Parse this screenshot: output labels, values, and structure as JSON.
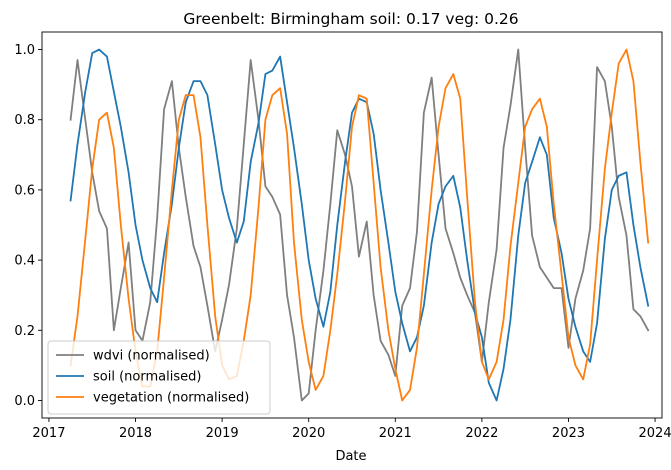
{
  "chart_data": {
    "type": "line",
    "title": "Greenbelt: Birmingham soil: 0.17     veg: 0.26",
    "xlabel": "Date",
    "ylabel": "",
    "xlim": [
      2016.92,
      2024.08
    ],
    "ylim": [
      -0.05,
      1.05
    ],
    "xticks": [
      2017,
      2018,
      2019,
      2020,
      2021,
      2022,
      2023,
      2024
    ],
    "xtick_labels": [
      "2017",
      "2018",
      "2019",
      "2020",
      "2021",
      "2022",
      "2023",
      "2024"
    ],
    "yticks": [
      0.0,
      0.2,
      0.4,
      0.6,
      0.8,
      1.0
    ],
    "ytick_labels": [
      "0.0",
      "0.2",
      "0.4",
      "0.6",
      "0.8",
      "1.0"
    ],
    "grid": false,
    "legend_position": "lower-left",
    "series": [
      {
        "name": "wdvi (normalised)",
        "color": "#7f7f7f",
        "x": [
          2017.25,
          2017.33,
          2017.42,
          2017.5,
          2017.58,
          2017.67,
          2017.75,
          2017.83,
          2017.92,
          2018.0,
          2018.08,
          2018.17,
          2018.25,
          2018.33,
          2018.42,
          2018.5,
          2018.58,
          2018.67,
          2018.75,
          2018.83,
          2018.92,
          2019.0,
          2019.08,
          2019.17,
          2019.25,
          2019.33,
          2019.42,
          2019.5,
          2019.58,
          2019.67,
          2019.75,
          2019.83,
          2019.92,
          2020.0,
          2020.08,
          2020.17,
          2020.25,
          2020.33,
          2020.42,
          2020.5,
          2020.58,
          2020.67,
          2020.75,
          2020.83,
          2020.92,
          2021.0,
          2021.08,
          2021.17,
          2021.25,
          2021.33,
          2021.42,
          2021.5,
          2021.58,
          2021.67,
          2021.75,
          2021.83,
          2021.92,
          2022.0,
          2022.08,
          2022.17,
          2022.25,
          2022.33,
          2022.42,
          2022.5,
          2022.58,
          2022.67,
          2022.75,
          2022.83,
          2022.92,
          2023.0,
          2023.08,
          2023.17,
          2023.25,
          2023.33,
          2023.42,
          2023.5,
          2023.58,
          2023.67,
          2023.75,
          2023.83,
          2023.92
        ],
        "values": [
          0.8,
          0.97,
          0.8,
          0.65,
          0.54,
          0.49,
          0.2,
          0.32,
          0.45,
          0.2,
          0.17,
          0.28,
          0.52,
          0.83,
          0.91,
          0.72,
          0.58,
          0.44,
          0.38,
          0.27,
          0.14,
          0.23,
          0.33,
          0.49,
          0.73,
          0.97,
          0.8,
          0.61,
          0.58,
          0.53,
          0.3,
          0.18,
          0.0,
          0.02,
          0.2,
          0.37,
          0.56,
          0.77,
          0.7,
          0.61,
          0.41,
          0.51,
          0.3,
          0.17,
          0.13,
          0.07,
          0.27,
          0.32,
          0.48,
          0.82,
          0.92,
          0.7,
          0.49,
          0.42,
          0.35,
          0.3,
          0.25,
          0.11,
          0.28,
          0.43,
          0.72,
          0.84,
          1.0,
          0.72,
          0.47,
          0.38,
          0.35,
          0.32,
          0.32,
          0.15,
          0.29,
          0.37,
          0.49,
          0.95,
          0.91,
          0.78,
          0.58,
          0.47,
          0.26,
          0.24,
          0.2
        ]
      },
      {
        "name": "soil (normalised)",
        "color": "#1f77b4",
        "x": [
          2017.25,
          2017.33,
          2017.42,
          2017.5,
          2017.58,
          2017.67,
          2017.75,
          2017.83,
          2017.92,
          2018.0,
          2018.08,
          2018.17,
          2018.25,
          2018.33,
          2018.42,
          2018.5,
          2018.58,
          2018.67,
          2018.75,
          2018.83,
          2018.92,
          2019.0,
          2019.08,
          2019.17,
          2019.25,
          2019.33,
          2019.42,
          2019.5,
          2019.58,
          2019.67,
          2019.75,
          2019.83,
          2019.92,
          2020.0,
          2020.08,
          2020.17,
          2020.25,
          2020.33,
          2020.42,
          2020.5,
          2020.58,
          2020.67,
          2020.75,
          2020.83,
          2020.92,
          2021.0,
          2021.08,
          2021.17,
          2021.25,
          2021.33,
          2021.42,
          2021.5,
          2021.58,
          2021.67,
          2021.75,
          2021.83,
          2021.92,
          2022.0,
          2022.08,
          2022.17,
          2022.25,
          2022.33,
          2022.42,
          2022.5,
          2022.58,
          2022.67,
          2022.75,
          2022.83,
          2022.92,
          2023.0,
          2023.08,
          2023.17,
          2023.25,
          2023.33,
          2023.42,
          2023.5,
          2023.58,
          2023.67,
          2023.75,
          2023.83,
          2023.92
        ],
        "values": [
          0.57,
          0.73,
          0.88,
          0.99,
          1.0,
          0.98,
          0.88,
          0.78,
          0.65,
          0.5,
          0.4,
          0.32,
          0.28,
          0.42,
          0.56,
          0.72,
          0.85,
          0.91,
          0.91,
          0.87,
          0.73,
          0.6,
          0.52,
          0.45,
          0.51,
          0.68,
          0.79,
          0.93,
          0.94,
          0.98,
          0.85,
          0.72,
          0.56,
          0.4,
          0.29,
          0.21,
          0.31,
          0.5,
          0.68,
          0.82,
          0.86,
          0.85,
          0.76,
          0.6,
          0.45,
          0.31,
          0.22,
          0.14,
          0.18,
          0.27,
          0.45,
          0.56,
          0.61,
          0.64,
          0.55,
          0.4,
          0.25,
          0.18,
          0.05,
          0.0,
          0.09,
          0.23,
          0.47,
          0.62,
          0.68,
          0.75,
          0.7,
          0.52,
          0.42,
          0.29,
          0.21,
          0.14,
          0.11,
          0.22,
          0.46,
          0.6,
          0.64,
          0.65,
          0.5,
          0.38,
          0.27
        ]
      },
      {
        "name": "vegetation (normalised)",
        "color": "#ff7f0e",
        "x": [
          2017.25,
          2017.33,
          2017.42,
          2017.5,
          2017.58,
          2017.67,
          2017.75,
          2017.83,
          2017.92,
          2018.0,
          2018.08,
          2018.17,
          2018.25,
          2018.33,
          2018.42,
          2018.5,
          2018.58,
          2018.67,
          2018.75,
          2018.83,
          2018.92,
          2019.0,
          2019.08,
          2019.17,
          2019.25,
          2019.33,
          2019.42,
          2019.5,
          2019.58,
          2019.67,
          2019.75,
          2019.83,
          2019.92,
          2020.0,
          2020.08,
          2020.17,
          2020.25,
          2020.33,
          2020.42,
          2020.5,
          2020.58,
          2020.67,
          2020.75,
          2020.83,
          2020.92,
          2021.0,
          2021.08,
          2021.17,
          2021.25,
          2021.33,
          2021.42,
          2021.5,
          2021.58,
          2021.67,
          2021.75,
          2021.83,
          2021.92,
          2022.0,
          2022.08,
          2022.17,
          2022.25,
          2022.33,
          2022.42,
          2022.5,
          2022.58,
          2022.67,
          2022.75,
          2022.83,
          2022.92,
          2023.0,
          2023.08,
          2023.17,
          2023.25,
          2023.33,
          2023.42,
          2023.5,
          2023.58,
          2023.67,
          2023.75,
          2023.83,
          2023.92
        ],
        "values": [
          0.1,
          0.24,
          0.46,
          0.66,
          0.8,
          0.82,
          0.72,
          0.5,
          0.29,
          0.14,
          0.04,
          0.04,
          0.14,
          0.35,
          0.6,
          0.8,
          0.87,
          0.87,
          0.75,
          0.5,
          0.24,
          0.1,
          0.06,
          0.07,
          0.17,
          0.3,
          0.55,
          0.8,
          0.87,
          0.89,
          0.76,
          0.45,
          0.23,
          0.11,
          0.03,
          0.07,
          0.2,
          0.36,
          0.57,
          0.78,
          0.87,
          0.86,
          0.62,
          0.38,
          0.2,
          0.09,
          0.0,
          0.03,
          0.15,
          0.36,
          0.6,
          0.78,
          0.89,
          0.93,
          0.86,
          0.58,
          0.28,
          0.11,
          0.06,
          0.11,
          0.23,
          0.44,
          0.62,
          0.78,
          0.83,
          0.86,
          0.78,
          0.56,
          0.36,
          0.18,
          0.1,
          0.06,
          0.16,
          0.4,
          0.66,
          0.82,
          0.96,
          1.0,
          0.91,
          0.68,
          0.45
        ]
      }
    ]
  }
}
